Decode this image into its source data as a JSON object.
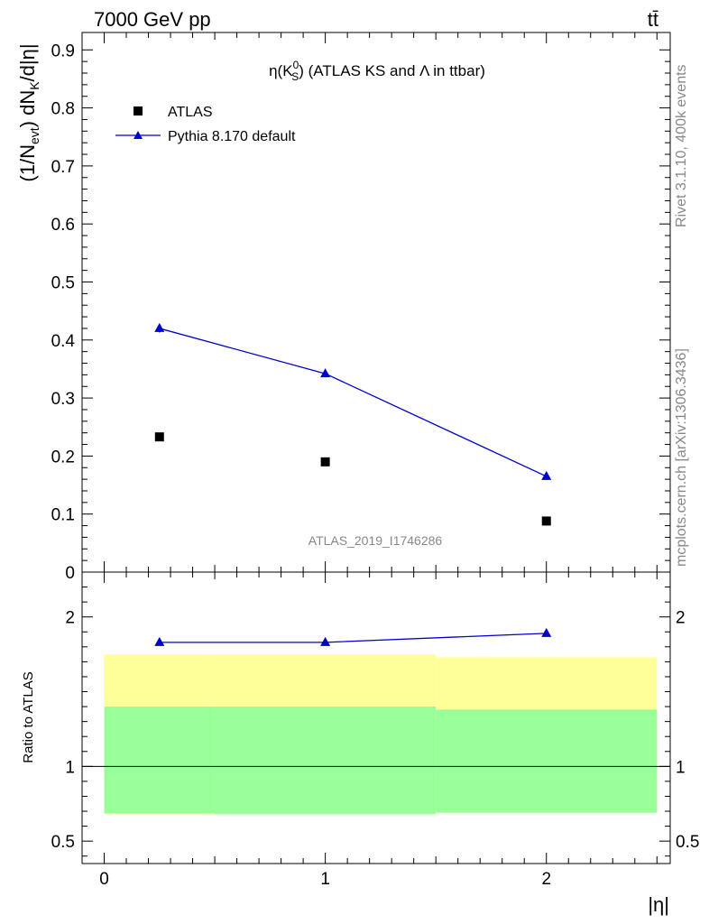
{
  "header": {
    "energy_label": "7000 GeV pp",
    "process_label": "tt̄"
  },
  "side_labels": {
    "rivet": "Rivet 3.1.10,  400k events",
    "mcplots": "mcplots.cern.ch [arXiv:1306.3436]"
  },
  "watermark": "ATLAS_2019_I1746286",
  "title": {
    "eta": "η(K",
    "sup": "0",
    "sub": "S",
    "rest": ") (ATLAS KS and Λ in ttbar)"
  },
  "ylabel_main": {
    "part1": "(1/N",
    "sub1": "evt",
    "part2": ") dN",
    "sub2": "K",
    "part3": "/d|η|"
  },
  "ylabel_ratio": "Ratio to ATLAS",
  "xlabel": "|η|",
  "colors": {
    "data": "#000000",
    "mc": "#0000cc",
    "band_inner": "#99ff99",
    "band_outer": "#ffff99"
  },
  "chart_data": [
    {
      "type": "scatter",
      "panel": "main",
      "x": [
        0.25,
        1.0,
        2.0
      ],
      "series": [
        {
          "name": "ATLAS",
          "values": [
            0.233,
            0.19,
            0.088
          ],
          "marker": "square",
          "color": "#000000"
        },
        {
          "name": "Pythia 8.170 default",
          "values": [
            0.42,
            0.342,
            0.165
          ],
          "errors": [
            0.007,
            0.003,
            0.003
          ],
          "marker": "triangle",
          "line": true,
          "color": "#0000cc"
        }
      ],
      "xlim": [
        -0.1,
        2.56
      ],
      "ylim": [
        0,
        0.93
      ],
      "yticks": [
        0,
        0.1,
        0.2,
        0.3,
        0.4,
        0.5,
        0.6,
        0.7,
        0.8,
        0.9
      ],
      "yticklabels": [
        "0",
        "0.1",
        "0.2",
        "0.3",
        "0.4",
        "0.5",
        "0.6",
        "0.7",
        "0.8",
        "0.9"
      ],
      "legend": "top-left"
    },
    {
      "type": "line",
      "panel": "ratio",
      "x": [
        0.25,
        1.0,
        2.0
      ],
      "series": [
        {
          "name": "Pythia 8.170 default",
          "values": [
            1.83,
            1.83,
            1.89
          ],
          "color": "#0000cc"
        }
      ],
      "bands": [
        {
          "bin_edges": [
            0,
            0.5,
            1.5,
            2.5
          ],
          "outer_low": [
            0.68,
            0.68,
            0.69
          ],
          "outer_high": [
            1.75,
            1.75,
            1.73
          ],
          "inner_low": [
            0.685,
            0.68,
            0.69
          ],
          "inner_high": [
            1.4,
            1.4,
            1.38
          ]
        }
      ],
      "reference_line": 1,
      "xlim": [
        -0.1,
        2.56
      ],
      "ylim": [
        0.35,
        2.3
      ],
      "yticks": [
        0.5,
        1,
        2
      ],
      "yticklabels": [
        "0.5",
        "1",
        "2"
      ],
      "xticks": [
        0,
        1,
        2
      ],
      "xticklabels": [
        "0",
        "1",
        "2"
      ]
    }
  ]
}
